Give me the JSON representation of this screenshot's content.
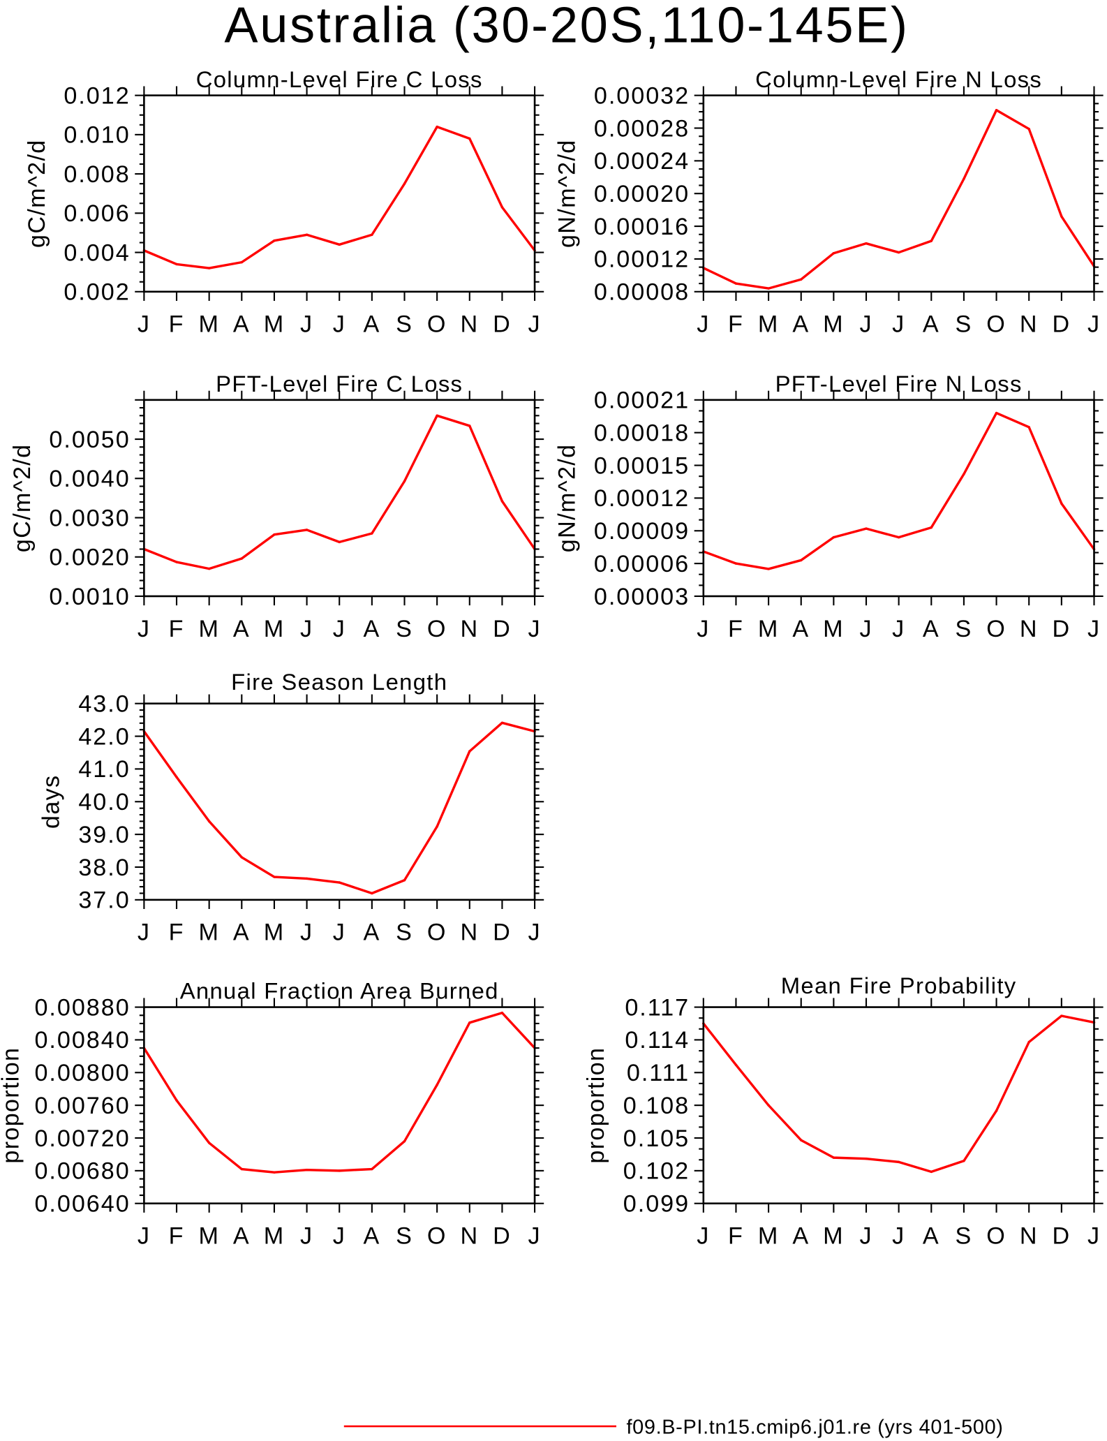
{
  "figure": {
    "title": "Australia (30-20S,110-145E)",
    "legend": {
      "placement": "bottom",
      "entries": [
        {
          "label": "f09.B-PI.tn15.cmip6.j01.re (yrs 401-500)",
          "color": "#ff0000"
        }
      ]
    }
  },
  "chart_data": [
    {
      "type": "line",
      "title": "Column-Level Fire C Loss",
      "ylabel": "gC/m^2/d",
      "categories": [
        "J",
        "F",
        "M",
        "A",
        "M",
        "J",
        "J",
        "A",
        "S",
        "O",
        "N",
        "D",
        "J"
      ],
      "ylim": [
        0.002,
        0.012
      ],
      "yticks": [
        0.002,
        0.004,
        0.006,
        0.008,
        0.01,
        0.012
      ],
      "ytick_labels": [
        "0.002",
        "0.004",
        "0.006",
        "0.008",
        "0.010",
        "0.012"
      ],
      "grid": false,
      "series": [
        {
          "color": "#ff0000",
          "values": [
            0.0041,
            0.0034,
            0.0032,
            0.0035,
            0.0046,
            0.0049,
            0.0044,
            0.0049,
            0.0075,
            0.0104,
            0.0098,
            0.0063,
            0.0041
          ]
        }
      ]
    },
    {
      "type": "line",
      "title": "Column-Level Fire N Loss",
      "ylabel": "gN/m^2/d",
      "categories": [
        "J",
        "F",
        "M",
        "A",
        "M",
        "J",
        "J",
        "A",
        "S",
        "O",
        "N",
        "D",
        "J"
      ],
      "ylim": [
        8e-05,
        0.00032
      ],
      "yticks": [
        8e-05,
        0.00012,
        0.00016,
        0.0002,
        0.00024,
        0.00028,
        0.00032
      ],
      "ytick_labels": [
        "0.00008",
        "0.00012",
        "0.00016",
        "0.00020",
        "0.00024",
        "0.00028",
        "0.00032"
      ],
      "grid": false,
      "series": [
        {
          "color": "#ff0000",
          "values": [
            0.000109,
            9e-05,
            8.4e-05,
            9.5e-05,
            0.000127,
            0.000139,
            0.000128,
            0.000142,
            0.000218,
            0.000302,
            0.000279,
            0.000172,
            0.000111
          ]
        }
      ]
    },
    {
      "type": "line",
      "title": "PFT-Level Fire C Loss",
      "ylabel": "gC/m^2/d",
      "categories": [
        "J",
        "F",
        "M",
        "A",
        "M",
        "J",
        "J",
        "A",
        "S",
        "O",
        "N",
        "D",
        "J"
      ],
      "ylim": [
        0.001,
        0.006
      ],
      "yticks": [
        0.001,
        0.002,
        0.003,
        0.004,
        0.005
      ],
      "ytick_labels": [
        "0.0010",
        "0.0020",
        "0.0030",
        "0.0040",
        "0.0050"
      ],
      "grid": false,
      "series": [
        {
          "color": "#ff0000",
          "values": [
            0.0022,
            0.00187,
            0.0017,
            0.00196,
            0.00257,
            0.00269,
            0.00238,
            0.0026,
            0.00393,
            0.0056,
            0.00534,
            0.00342,
            0.0022
          ]
        }
      ]
    },
    {
      "type": "line",
      "title": "PFT-Level Fire N Loss",
      "ylabel": "gN/m^2/d",
      "categories": [
        "J",
        "F",
        "M",
        "A",
        "M",
        "J",
        "J",
        "A",
        "S",
        "O",
        "N",
        "D",
        "J"
      ],
      "ylim": [
        3e-05,
        0.00021
      ],
      "yticks": [
        3e-05,
        6e-05,
        9e-05,
        0.00012,
        0.00015,
        0.00018,
        0.00021
      ],
      "ytick_labels": [
        "0.00003",
        "0.00006",
        "0.00009",
        "0.00012",
        "0.00015",
        "0.00018",
        "0.00021"
      ],
      "grid": false,
      "series": [
        {
          "color": "#ff0000",
          "values": [
            7.1e-05,
            6e-05,
            5.5e-05,
            6.3e-05,
            8.4e-05,
            9.2e-05,
            8.4e-05,
            9.3e-05,
            0.000142,
            0.000198,
            0.000185,
            0.000115,
            7.3e-05
          ]
        }
      ]
    },
    {
      "type": "line",
      "title": "Fire Season Length",
      "ylabel": "days",
      "categories": [
        "J",
        "F",
        "M",
        "A",
        "M",
        "J",
        "J",
        "A",
        "S",
        "O",
        "N",
        "D",
        "J"
      ],
      "ylim": [
        37.0,
        43.0
      ],
      "yticks": [
        37.0,
        38.0,
        39.0,
        40.0,
        41.0,
        42.0,
        43.0
      ],
      "ytick_labels": [
        "37.0",
        "38.0",
        "39.0",
        "40.0",
        "41.0",
        "42.0",
        "43.0"
      ],
      "grid": false,
      "series": [
        {
          "color": "#ff0000",
          "values": [
            42.15,
            40.75,
            39.4,
            38.3,
            37.7,
            37.65,
            37.53,
            37.2,
            37.6,
            39.24,
            41.54,
            42.41,
            42.15
          ]
        }
      ]
    },
    {
      "type": "line",
      "title": "Annual Fraction Area Burned",
      "ylabel": "proportion",
      "categories": [
        "J",
        "F",
        "M",
        "A",
        "M",
        "J",
        "J",
        "A",
        "S",
        "O",
        "N",
        "D",
        "J"
      ],
      "ylim": [
        0.0064,
        0.0088
      ],
      "yticks": [
        0.0064,
        0.0068,
        0.0072,
        0.0076,
        0.008,
        0.0084,
        0.0088
      ],
      "ytick_labels": [
        "0.00640",
        "0.00680",
        "0.00720",
        "0.00760",
        "0.00800",
        "0.00840",
        "0.00880"
      ],
      "grid": false,
      "series": [
        {
          "color": "#ff0000",
          "values": [
            0.0083,
            0.00766,
            0.00714,
            0.00682,
            0.00678,
            0.00681,
            0.0068,
            0.00682,
            0.00716,
            0.00785,
            0.00861,
            0.00873,
            0.0083
          ]
        }
      ]
    },
    {
      "type": "line",
      "title": "Mean Fire Probability",
      "ylabel": "proportion",
      "categories": [
        "J",
        "F",
        "M",
        "A",
        "M",
        "J",
        "J",
        "A",
        "S",
        "O",
        "N",
        "D",
        "J"
      ],
      "ylim": [
        0.099,
        0.117
      ],
      "yticks": [
        0.099,
        0.102,
        0.105,
        0.108,
        0.111,
        0.114,
        0.117
      ],
      "ytick_labels": [
        "0.099",
        "0.102",
        "0.105",
        "0.108",
        "0.111",
        "0.114",
        "0.117"
      ],
      "grid": false,
      "series": [
        {
          "color": "#ff0000",
          "values": [
            0.1155,
            0.1117,
            0.108,
            0.1048,
            0.1032,
            0.1031,
            0.1028,
            0.1019,
            0.1029,
            0.1075,
            0.1138,
            0.1162,
            0.1156
          ]
        }
      ]
    }
  ]
}
